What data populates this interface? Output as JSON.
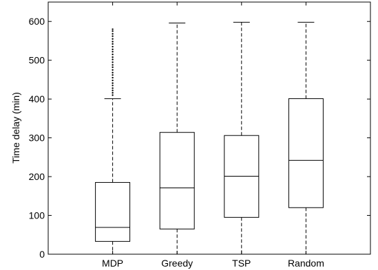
{
  "chart_data": {
    "type": "box",
    "title": "",
    "xlabel": "",
    "ylabel": "Time delay (min)",
    "ylim": [
      0,
      650
    ],
    "yticks": [
      0,
      100,
      200,
      300,
      400,
      500,
      600
    ],
    "grid": false,
    "categories": [
      "MDP",
      "Greedy",
      "TSP",
      "Random"
    ],
    "boxes": [
      {
        "category": "MDP",
        "whisker_low": 0,
        "q1": 33,
        "median": 69,
        "q3": 185,
        "whisker_high": 401,
        "outliers": [
          410,
          416,
          422,
          428,
          435,
          441,
          448,
          455,
          462,
          468,
          475,
          482,
          488,
          495,
          502,
          508,
          515,
          522,
          528,
          535,
          542,
          548,
          555,
          562,
          568,
          575,
          580
        ]
      },
      {
        "category": "Greedy",
        "whisker_low": 0,
        "q1": 65,
        "median": 171,
        "q3": 314,
        "whisker_high": 596,
        "outliers": []
      },
      {
        "category": "TSP",
        "whisker_low": 0,
        "q1": 95,
        "median": 201,
        "q3": 306,
        "whisker_high": 598,
        "outliers": []
      },
      {
        "category": "Random",
        "whisker_low": 0,
        "q1": 120,
        "median": 242,
        "q3": 401,
        "whisker_high": 598,
        "outliers": []
      }
    ]
  }
}
